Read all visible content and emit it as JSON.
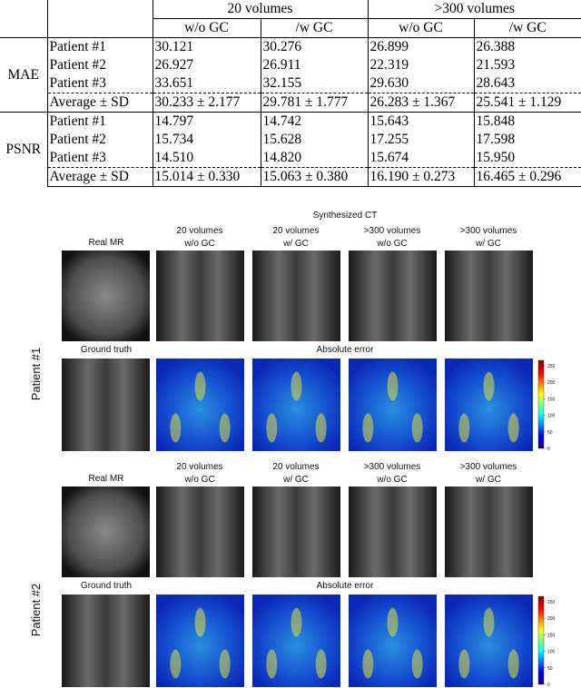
{
  "table": {
    "header": {
      "groups": [
        "20 volumes",
        ">300 volumes"
      ],
      "columns": [
        "w/o GC",
        "/w GC",
        "w/o GC",
        "/w GC"
      ]
    },
    "sections": [
      {
        "metric": "MAE",
        "rows": [
          [
            "Patient #1",
            "30.121",
            "30.276",
            "26.899",
            "26.388"
          ],
          [
            "Patient #2",
            "26.927",
            "26.911",
            "22.319",
            "21.593"
          ],
          [
            "Patient #3",
            "33.651",
            "32.155",
            "29.630",
            "28.643"
          ],
          [
            "Average ± SD",
            "30.233 ± 2.177",
            "29.781 ± 1.777",
            "26.283 ± 1.367",
            "25.541 ± 1.129"
          ]
        ]
      },
      {
        "metric": "PSNR",
        "rows": [
          [
            "Patient #1",
            "14.797",
            "14.742",
            "15.643",
            "15.848"
          ],
          [
            "Patient #2",
            "15.734",
            "15.628",
            "17.255",
            "17.598"
          ],
          [
            "Patient #3",
            "14.510",
            "14.820",
            "15.674",
            "15.950"
          ],
          [
            "Average ± SD",
            "15.014 ± 0.330",
            "15.063 ± 0.380",
            "16.190 ± 0.273",
            "16.465 ± 0.296"
          ]
        ]
      }
    ]
  },
  "figure": {
    "panels": [
      {
        "patient": "Patient #1",
        "synth_title": "Synthesized CT",
        "real_mr": "Real MR",
        "columns": [
          [
            "20 volumes",
            "w/o GC"
          ],
          [
            "20 volumes",
            "w/ GC"
          ],
          [
            ">300 volumes",
            "w/o GC"
          ],
          [
            ">300 volumes",
            "w/ GC"
          ]
        ],
        "ground_truth": "Ground truth",
        "error_title": "Absolute error",
        "colorbar_ticks": [
          0,
          50,
          100,
          150,
          200,
          250
        ]
      },
      {
        "patient": "Patient #2",
        "real_mr": "Real MR",
        "columns": [
          [
            "20 volumes",
            "w/o GC"
          ],
          [
            "20 volumes",
            "w/ GC"
          ],
          [
            ">300 volumes",
            "w/o GC"
          ],
          [
            ">300 volumes",
            "w/ GC"
          ]
        ],
        "ground_truth": "Ground truth",
        "error_title": "Absolute error",
        "colorbar_ticks": [
          0,
          50,
          100,
          150,
          200,
          250
        ]
      }
    ]
  }
}
